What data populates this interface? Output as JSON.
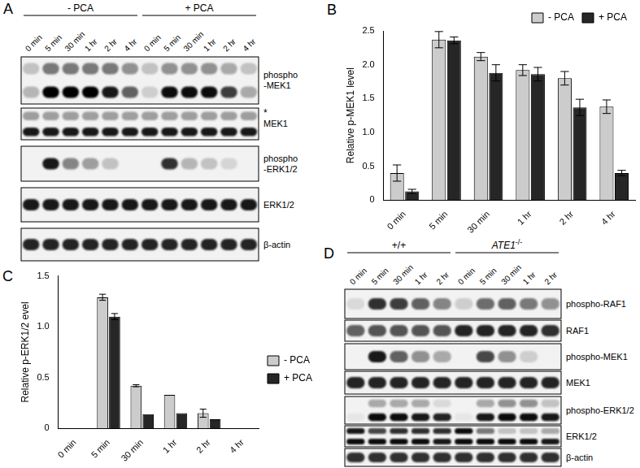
{
  "chart_data": [
    {
      "type": "bar",
      "title": "B",
      "y_label": "Relative p-MEK1 level",
      "categories": [
        "0 min",
        "5 min",
        "30 min",
        "1 hr",
        "2 hr",
        "4 hr"
      ],
      "series": [
        {
          "name": "- PCA",
          "color": "#cccccc",
          "values": [
            0.4,
            2.37,
            2.12,
            1.92,
            1.8,
            1.38
          ],
          "errors": [
            0.12,
            0.12,
            0.06,
            0.08,
            0.1,
            0.1
          ]
        },
        {
          "name": "+ PCA",
          "color": "#262626",
          "values": [
            0.13,
            2.36,
            1.88,
            1.86,
            1.37,
            0.4
          ],
          "errors": [
            0.03,
            0.05,
            0.12,
            0.1,
            0.12,
            0.04
          ]
        }
      ],
      "ylim": [
        0,
        2.5
      ],
      "yticks": [
        0,
        0.5,
        {
          "value": 1,
          "label": "1.0"
        },
        1.5,
        {
          "value": 2,
          "label": "2.0"
        },
        2.5
      ],
      "grid": false,
      "legend": "top-right"
    },
    {
      "type": "bar",
      "title": "C",
      "y_label": "Relative p-ERK1/2 evel",
      "categories": [
        "0 min",
        "5 min",
        "30 min",
        "1 hr",
        "2 hr",
        "4 hr"
      ],
      "series": [
        {
          "name": "- PCA",
          "color": "#cccccc",
          "values": [
            0,
            1.29,
            0.42,
            0.33,
            0.15,
            0
          ],
          "errors": [
            0,
            0.03,
            0.01,
            0,
            0.04,
            0
          ]
        },
        {
          "name": "+ PCA",
          "color": "#262626",
          "values": [
            0,
            1.1,
            0.14,
            0.15,
            0.09,
            0
          ],
          "errors": [
            0,
            0.03,
            0,
            0,
            0,
            0
          ]
        }
      ],
      "ylim": [
        0,
        1.5
      ],
      "yticks": [
        0,
        0.5,
        {
          "value": 1,
          "label": "1.0"
        },
        1.5
      ],
      "grid": false,
      "legend": "right"
    }
  ],
  "blots": [
    {
      "letter": "A",
      "groups": [
        {
          "label": "- PCA",
          "lanes": [
            "0 min",
            "5 min",
            "30 min",
            "1 hr",
            "2 hr",
            "4 hr"
          ]
        },
        {
          "label": "+ PCA",
          "lanes": [
            "0 min",
            "5 min",
            "30 min",
            "1 hr",
            "2 hr",
            "4 hr"
          ]
        }
      ],
      "rows": [
        {
          "label": [
            "phospho",
            "-MEK1"
          ],
          "bands": [
            [
              0.2,
              0.5,
              0.5,
              0.5,
              0.5,
              0.4,
              0.2,
              0.4,
              0.4,
              0.4,
              0.3,
              0.2
            ],
            [
              0.25,
              1,
              1,
              1,
              0.9,
              0.6,
              0.15,
              0.95,
              0.95,
              0.95,
              0.75,
              0.3
            ]
          ]
        },
        {
          "label": "MEK1",
          "annotation": "*",
          "bands": [
            [
              0.35,
              0.35,
              0.35,
              0.35,
              0.35,
              0.35,
              0.35,
              0.35,
              0.35,
              0.35,
              0.35,
              0.35
            ],
            [
              0.9,
              0.9,
              0.9,
              0.9,
              0.9,
              0.9,
              0.9,
              0.9,
              0.9,
              0.9,
              0.9,
              0.9
            ]
          ]
        },
        {
          "label": [
            "phospho",
            "-ERK1/2"
          ],
          "bands": [
            [
              0,
              0.9,
              0.45,
              0.35,
              0.2,
              0,
              0,
              0.8,
              0.25,
              0.2,
              0.12,
              0
            ]
          ]
        },
        {
          "label": "ERK1/2",
          "bands": [
            [
              0.9,
              0.9,
              0.9,
              0.9,
              0.9,
              0.9,
              0.9,
              0.9,
              0.9,
              0.9,
              0.9,
              0.9
            ]
          ]
        },
        {
          "label": "β-actin",
          "bands": [
            [
              0.85,
              0.85,
              0.85,
              0.85,
              0.85,
              0.85,
              0.85,
              0.85,
              0.85,
              0.85,
              0.85,
              0.85
            ]
          ]
        }
      ]
    },
    {
      "letter": "D",
      "groups": [
        {
          "label": "+/+",
          "lanes": [
            "0 min",
            "5 min",
            "30 min",
            "1 hr",
            "2 hr"
          ]
        },
        {
          "label": "ATE1-/-",
          "lanes": [
            "0 min",
            "5 min",
            "30 min",
            "1 hr",
            "2 hr"
          ]
        }
      ],
      "rows": [
        {
          "label": "phospho-RAF1",
          "bands": [
            [
              0.1,
              0.8,
              0.75,
              0.6,
              0.45,
              0.15,
              0.55,
              0.6,
              0.5,
              0.4
            ]
          ]
        },
        {
          "label": "RAF1",
          "bands": [
            [
              0.6,
              0.65,
              0.65,
              0.65,
              0.65,
              0.85,
              0.85,
              0.85,
              0.85,
              0.8
            ]
          ]
        },
        {
          "label": "phospho-MEK1",
          "bands": [
            [
              0,
              0.9,
              0.6,
              0.4,
              0.3,
              0,
              0.7,
              0.4,
              0.15,
              0
            ]
          ]
        },
        {
          "label": "MEK1",
          "bands": [
            [
              0.85,
              0.85,
              0.85,
              0.85,
              0.85,
              0.85,
              0.85,
              0.85,
              0.85,
              0.85
            ]
          ]
        },
        {
          "label": "phospho-ERK1/2",
          "bands": [
            [
              0,
              0.3,
              0.3,
              0.3,
              0.1,
              0,
              0.3,
              0.4,
              0.4,
              0.2
            ],
            [
              0.05,
              0.95,
              0.95,
              0.9,
              0.85,
              0.05,
              0.9,
              0.95,
              0.95,
              0.9
            ]
          ]
        },
        {
          "label": "ERK1/2",
          "bands": [
            [
              0.9,
              0.7,
              0.8,
              0.8,
              0.8,
              0.95,
              0.5,
              0.2,
              0.2,
              0.3
            ],
            [
              0.95,
              0.95,
              0.95,
              0.95,
              0.9,
              0.95,
              0.95,
              0.95,
              0.95,
              0.9
            ]
          ]
        },
        {
          "label": "β-actin",
          "bands": [
            [
              0.8,
              0.8,
              0.8,
              0.8,
              0.8,
              0.8,
              0.8,
              0.8,
              0.8,
              0.8
            ]
          ]
        }
      ]
    }
  ]
}
